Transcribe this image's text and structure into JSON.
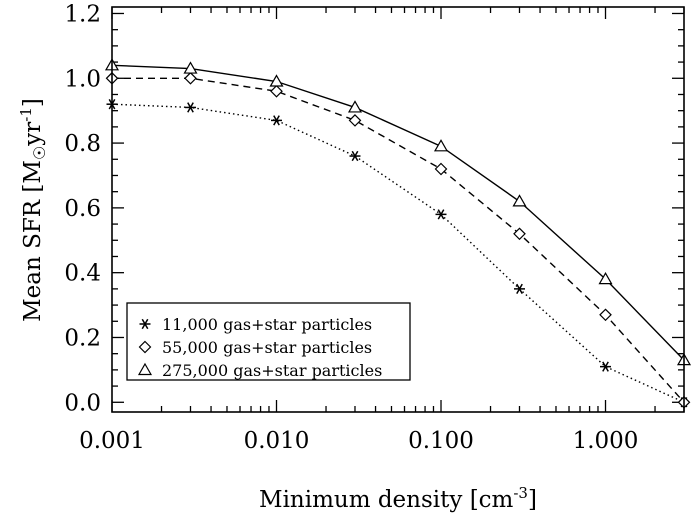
{
  "chart_data": {
    "type": "line",
    "title": "",
    "xlabel": "Minimum density [cm",
    "xlabel_sup": "-3",
    "xlabel_end": "]",
    "ylabel_pre": "Mean SFR [M",
    "ylabel_sun": "☉",
    "ylabel_mid": "yr",
    "ylabel_sup": "-1",
    "ylabel_end": "]",
    "xscale": "log",
    "xlim": [
      0.001,
      3.0
    ],
    "ylim": [
      -0.03,
      1.22
    ],
    "x_ticks": [
      0.001,
      0.01,
      0.1,
      1.0
    ],
    "x_tick_labels": [
      "0.001",
      "0.010",
      "0.100",
      "1.000"
    ],
    "y_ticks": [
      0.0,
      0.2,
      0.4,
      0.6,
      0.8,
      1.0,
      1.2
    ],
    "y_tick_labels": [
      "0.0",
      "0.2",
      "0.4",
      "0.6",
      "0.8",
      "1.0",
      "1.2"
    ],
    "x": [
      0.001,
      0.003,
      0.01,
      0.03,
      0.1,
      0.3,
      1.0,
      3.0
    ],
    "series": [
      {
        "name": "11,000 gas+star particles",
        "marker": "asterisk",
        "line": "dotted",
        "values": [
          0.92,
          0.91,
          0.87,
          0.76,
          0.58,
          0.35,
          0.11,
          0.0
        ]
      },
      {
        "name": "55,000 gas+star particles",
        "marker": "diamond",
        "line": "dashed",
        "values": [
          1.0,
          1.0,
          0.96,
          0.87,
          0.72,
          0.52,
          0.27,
          0.0
        ]
      },
      {
        "name": "275,000 gas+star particles",
        "marker": "triangle",
        "line": "solid",
        "values": [
          1.04,
          1.03,
          0.99,
          0.91,
          0.79,
          0.62,
          0.38,
          0.13
        ]
      }
    ],
    "legend_position": "bottom-left"
  }
}
